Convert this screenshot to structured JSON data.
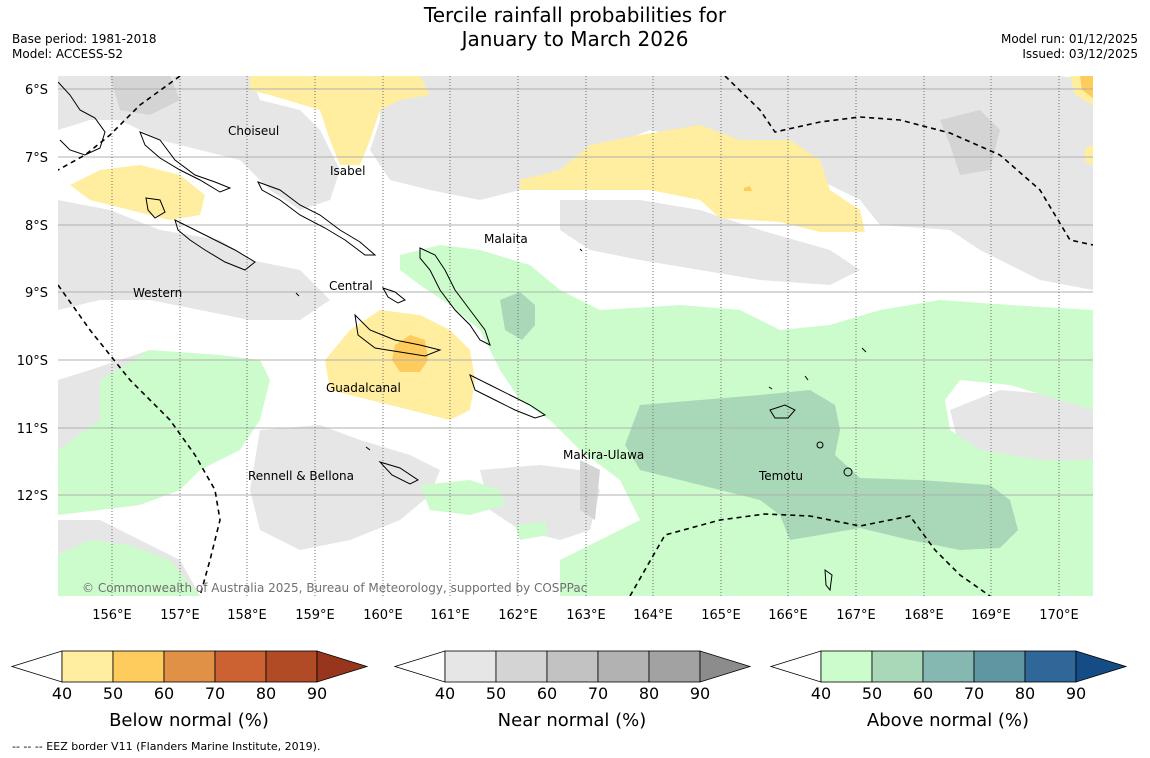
{
  "header": {
    "title_line1": "Tercile rainfall probabilities for",
    "title_line2": "January to March 2026",
    "base_period": "Base period: 1981-2018",
    "model": "Model: ACCESS-S2",
    "model_run": "Model run: 01/12/2025",
    "issued": "Issued: 03/12/2025"
  },
  "map": {
    "lat_labels": [
      "6°S",
      "7°S",
      "8°S",
      "9°S",
      "10°S",
      "11°S",
      "12°S"
    ],
    "lon_labels": [
      "156°E",
      "157°E",
      "158°E",
      "159°E",
      "160°E",
      "161°E",
      "162°E",
      "163°E",
      "164°E",
      "165°E",
      "166°E",
      "167°E",
      "168°E",
      "169°E",
      "170°E"
    ],
    "regions": [
      "Choiseul",
      "Isabel",
      "Malaita",
      "Central",
      "Western",
      "Guadalcanal",
      "Makira-Ulawa",
      "Temotu",
      "Rennell & Bellona"
    ],
    "copyright": "© Commonwealth of Australia 2025, Bureau of Meteorology, supported by COSPPac"
  },
  "colorbars": [
    {
      "label": "Below normal (%)",
      "ticks": [
        "40",
        "50",
        "60",
        "70",
        "80",
        "90"
      ],
      "colors": [
        "#ffeda0",
        "#fecc5c",
        "#e09145",
        "#cc6131",
        "#b04b25",
        "#97361c"
      ]
    },
    {
      "label": "Near normal (%)",
      "ticks": [
        "40",
        "50",
        "60",
        "70",
        "80",
        "90"
      ],
      "colors": [
        "#e6e6e6",
        "#d4d4d4",
        "#c2c2c2",
        "#b2b2b2",
        "#a2a2a2",
        "#8c8c8c"
      ]
    },
    {
      "label": "Above normal (%)",
      "ticks": [
        "40",
        "50",
        "60",
        "70",
        "80",
        "90"
      ],
      "colors": [
        "#ccfccc",
        "#a8d8b8",
        "#84b8b0",
        "#5f96a2",
        "#2f6799",
        "#164c86"
      ]
    }
  ],
  "footer": {
    "note": "--  --  -- EEZ border V11 (Flanders Marine Institute, 2019)."
  }
}
